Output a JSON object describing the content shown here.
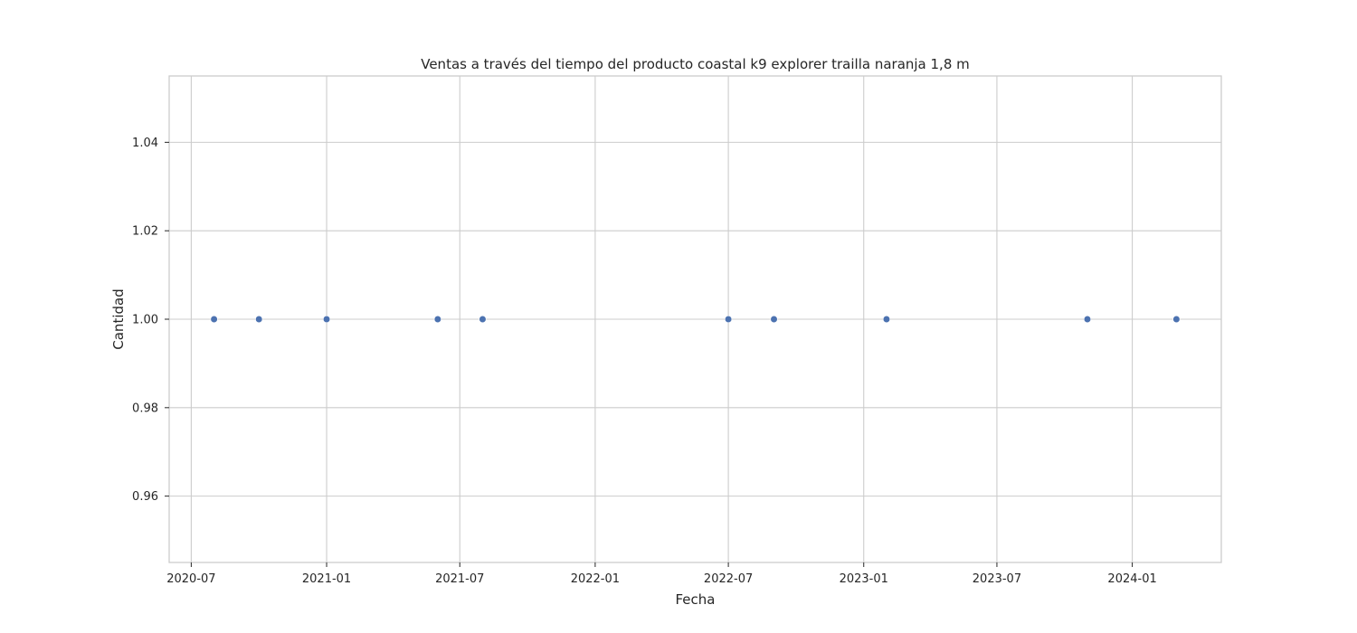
{
  "chart_data": {
    "type": "scatter",
    "title": "Ventas a través del tiempo del producto coastal k9 explorer trailla naranja 1,8 m",
    "xlabel": "Fecha",
    "ylabel": "Cantidad",
    "x_scale": "date",
    "xlim": [
      "2020-06-01",
      "2024-05-01"
    ],
    "ylim": [
      0.945,
      1.055
    ],
    "grid": true,
    "x_ticks": [
      "2020-07-01",
      "2021-01-01",
      "2021-07-01",
      "2022-01-01",
      "2022-07-01",
      "2023-01-01",
      "2023-07-01",
      "2024-01-01"
    ],
    "x_tick_labels": [
      "2020-07",
      "2021-01",
      "2021-07",
      "2022-01",
      "2022-07",
      "2023-01",
      "2023-07",
      "2024-01"
    ],
    "y_ticks": [
      0.96,
      0.98,
      1.0,
      1.02,
      1.04
    ],
    "y_tick_labels": [
      "0.96",
      "0.98",
      "1.00",
      "1.02",
      "1.04"
    ],
    "point_color": "#4c72b0",
    "points": [
      {
        "x": "2020-08-01",
        "y": 1
      },
      {
        "x": "2020-10-01",
        "y": 1
      },
      {
        "x": "2021-01-01",
        "y": 1
      },
      {
        "x": "2021-06-01",
        "y": 1
      },
      {
        "x": "2021-08-01",
        "y": 1
      },
      {
        "x": "2022-07-01",
        "y": 1
      },
      {
        "x": "2022-09-01",
        "y": 1
      },
      {
        "x": "2023-02-01",
        "y": 1
      },
      {
        "x": "2023-11-01",
        "y": 1
      },
      {
        "x": "2024-03-01",
        "y": 1
      }
    ]
  }
}
